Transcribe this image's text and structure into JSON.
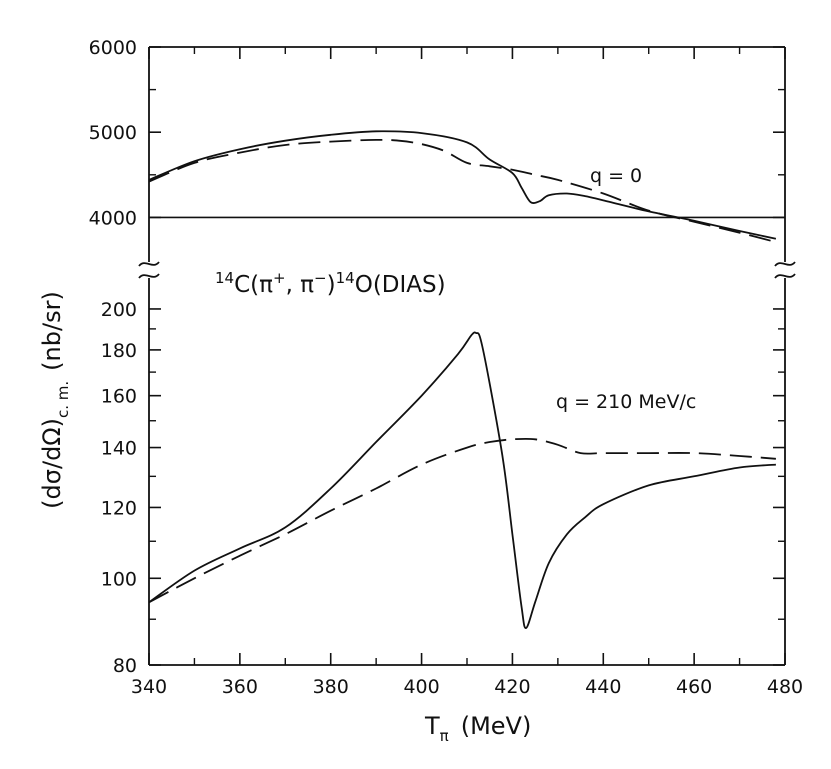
{
  "chart_data": {
    "type": "line",
    "title": "14C(π+,π−)14O(DIAS)",
    "title_parts": {
      "mass_a": "14",
      "nucleus_a": "C",
      "open": "(π",
      "charge_a": "+",
      "comma": ", π",
      "charge_b": "−",
      "close": ")",
      "mass_b": "14",
      "nucleus_b": "O",
      "state": "(DIAS)"
    },
    "xlabel": "T",
    "xlabel_sub": "π",
    "xlabel_unit": "(MeV)",
    "ylabel": "(dσ/dΩ)",
    "ylabel_sub": "c. m.",
    "ylabel_unit": "(nb/sr)",
    "xlim": [
      340,
      480
    ],
    "xticks": [
      340,
      360,
      380,
      400,
      420,
      440,
      460,
      480
    ],
    "panels": [
      {
        "name": "upper",
        "annotation": "q = 0",
        "ylim": [
          3500,
          6000
        ],
        "yticks": [
          4000,
          5000,
          6000
        ],
        "reference_line": 4000,
        "series": [
          {
            "name": "solid",
            "style": "solid",
            "points": [
              [
                340,
                4440
              ],
              [
                350,
                4660
              ],
              [
                360,
                4800
              ],
              [
                370,
                4900
              ],
              [
                380,
                4970
              ],
              [
                390,
                5010
              ],
              [
                400,
                4990
              ],
              [
                410,
                4880
              ],
              [
                415,
                4680
              ],
              [
                420,
                4520
              ],
              [
                422,
                4350
              ],
              [
                424,
                4180
              ],
              [
                426,
                4190
              ],
              [
                428,
                4260
              ],
              [
                432,
                4280
              ],
              [
                436,
                4250
              ],
              [
                440,
                4200
              ],
              [
                450,
                4070
              ],
              [
                460,
                3960
              ],
              [
                470,
                3840
              ],
              [
                478,
                3750
              ]
            ]
          },
          {
            "name": "dashed",
            "style": "dashed",
            "points": [
              [
                340,
                4420
              ],
              [
                350,
                4640
              ],
              [
                360,
                4760
              ],
              [
                370,
                4850
              ],
              [
                380,
                4890
              ],
              [
                390,
                4910
              ],
              [
                395,
                4900
              ],
              [
                400,
                4860
              ],
              [
                405,
                4780
              ],
              [
                410,
                4640
              ],
              [
                415,
                4600
              ],
              [
                420,
                4560
              ],
              [
                425,
                4500
              ],
              [
                430,
                4440
              ],
              [
                440,
                4280
              ],
              [
                450,
                4080
              ],
              [
                460,
                3950
              ],
              [
                470,
                3820
              ],
              [
                478,
                3710
              ]
            ]
          }
        ]
      },
      {
        "name": "lower",
        "annotation": "q = 210 MeV/c",
        "ylim": [
          80,
          210
        ],
        "yticks": [
          80,
          100,
          120,
          140,
          160,
          180,
          200
        ],
        "series": [
          {
            "name": "solid",
            "style": "solid",
            "points": [
              [
                340,
                94
              ],
              [
                350,
                102
              ],
              [
                360,
                108
              ],
              [
                370,
                114
              ],
              [
                380,
                126
              ],
              [
                390,
                142
              ],
              [
                400,
                160
              ],
              [
                408,
                178
              ],
              [
                411,
                187
              ],
              [
                412,
                188
              ],
              [
                413,
                185
              ],
              [
                415,
                165
              ],
              [
                418,
                135
              ],
              [
                420,
                112
              ],
              [
                422,
                93
              ],
              [
                423,
                88
              ],
              [
                425,
                94
              ],
              [
                428,
                104
              ],
              [
                432,
                112
              ],
              [
                436,
                117
              ],
              [
                440,
                121
              ],
              [
                450,
                127
              ],
              [
                460,
                130
              ],
              [
                470,
                133
              ],
              [
                478,
                134
              ]
            ]
          },
          {
            "name": "dashed",
            "style": "dashed",
            "points": [
              [
                340,
                94
              ],
              [
                350,
                100
              ],
              [
                360,
                106
              ],
              [
                370,
                112
              ],
              [
                380,
                119
              ],
              [
                390,
                126
              ],
              [
                400,
                134
              ],
              [
                410,
                140
              ],
              [
                415,
                142
              ],
              [
                420,
                143
              ],
              [
                425,
                143
              ],
              [
                430,
                141
              ],
              [
                435,
                138
              ],
              [
                440,
                138
              ],
              [
                450,
                138
              ],
              [
                460,
                138
              ],
              [
                470,
                137
              ],
              [
                478,
                136
              ]
            ]
          }
        ]
      }
    ]
  }
}
